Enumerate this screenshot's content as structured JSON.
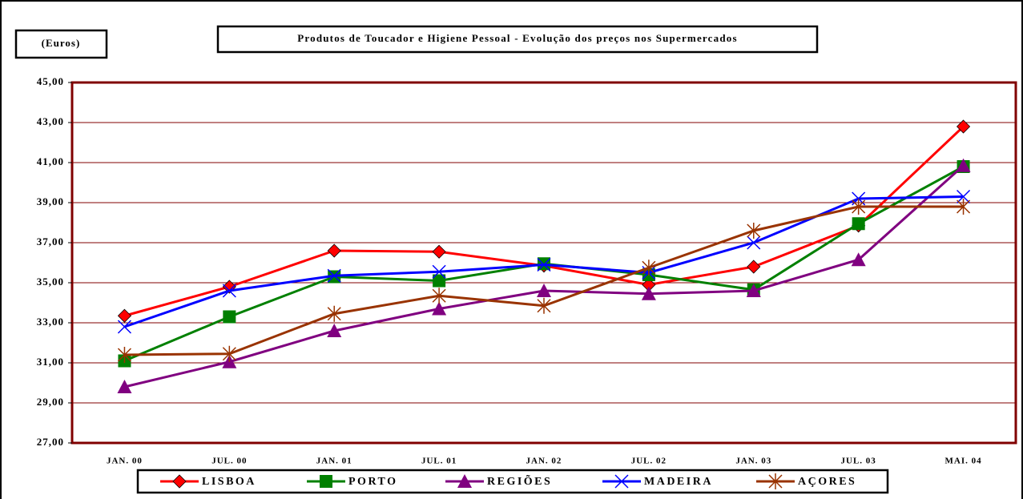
{
  "chart_data": {
    "type": "line",
    "title": "Produtos de Toucador e Higiene Pessoal - Evolução dos preços nos Supermercados",
    "y_label": "(Euros)",
    "categories": [
      "JAN. 00",
      "JUL. 00",
      "JAN. 01",
      "JUL. 01",
      "JAN. 02",
      "JUL. 02",
      "JAN. 03",
      "JUL. 03",
      "MAI. 04"
    ],
    "series": [
      {
        "name": "LISBOA",
        "color": "#ff0000",
        "values": [
          33.35,
          34.8,
          36.6,
          36.55,
          35.85,
          34.9,
          35.8,
          37.85,
          42.8
        ]
      },
      {
        "name": "PORTO",
        "color": "#008000",
        "values": [
          31.1,
          33.3,
          35.3,
          35.1,
          35.95,
          35.4,
          34.65,
          37.95,
          40.8
        ]
      },
      {
        "name": "REGIÕES",
        "color": "#800080",
        "values": [
          29.8,
          31.05,
          32.6,
          33.7,
          34.6,
          34.45,
          34.6,
          36.15,
          40.85
        ]
      },
      {
        "name": "MADEIRA",
        "color": "#0000ff",
        "values": [
          32.8,
          34.6,
          35.35,
          35.55,
          35.9,
          35.5,
          37.0,
          39.2,
          39.3
        ]
      },
      {
        "name": "AÇORES",
        "color": "#993300",
        "values": [
          31.4,
          31.45,
          33.45,
          34.35,
          33.85,
          35.75,
          37.6,
          38.8,
          38.8
        ]
      }
    ],
    "ylim": [
      27,
      45
    ],
    "yticks": [
      {
        "value": 27,
        "label": "27,00"
      },
      {
        "value": 29,
        "label": "29,00"
      },
      {
        "value": 31,
        "label": "31,00"
      },
      {
        "value": 33,
        "label": "33,00"
      },
      {
        "value": 35,
        "label": "35,00"
      },
      {
        "value": 37,
        "label": "37,00"
      },
      {
        "value": 39,
        "label": "39,00"
      },
      {
        "value": 41,
        "label": "41,00"
      },
      {
        "value": 43,
        "label": "43,00"
      },
      {
        "value": 45,
        "label": "45,00"
      }
    ],
    "grid": true,
    "legend": "bottom"
  }
}
